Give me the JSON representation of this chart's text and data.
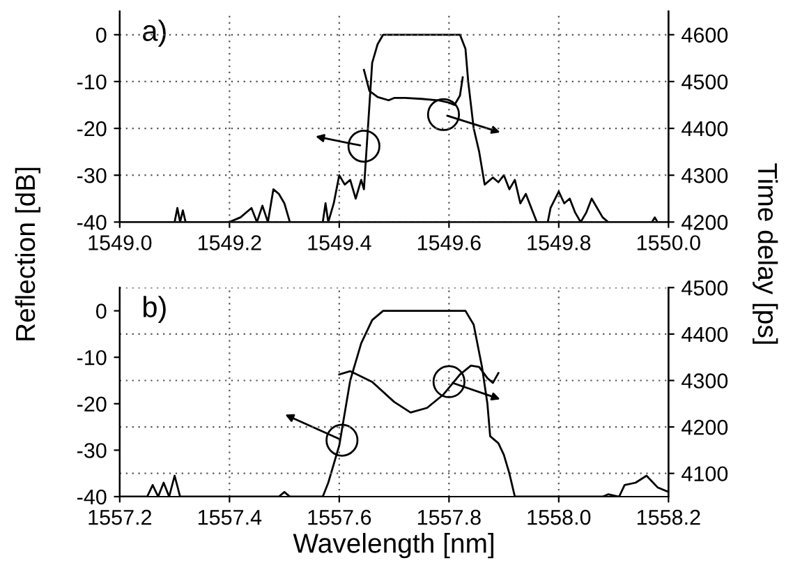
{
  "chart_data": [
    {
      "type": "line",
      "ylabel": "Reflection [dB]",
      "y2label": "Time delay [ps]",
      "annotations": [
        "a)"
      ],
      "xlim": [
        1549.0,
        1550.0
      ],
      "xticks": [
        {
          "value": 1549.0,
          "label": "1549.0"
        },
        {
          "value": 1549.2,
          "label": "1549.2"
        },
        {
          "value": 1549.4,
          "label": "1549.4"
        },
        {
          "value": 1549.6,
          "label": "1549.6"
        },
        {
          "value": 1549.8,
          "label": "1549.8"
        },
        {
          "value": 1550.0,
          "label": "1550.0"
        }
      ],
      "ylim": [
        -40,
        5
      ],
      "yticks": [
        -40,
        -30,
        -20,
        -10,
        0
      ],
      "y2lim": [
        4200,
        4650
      ],
      "y2ticks": [
        4200,
        4300,
        4400,
        4500,
        4600
      ],
      "grid": true,
      "line_style": "solid",
      "marker": "none",
      "series": [
        {
          "color": "#000000",
          "x": [
            1549.0,
            1549.1,
            1549.105,
            1549.11,
            1549.115,
            1549.12,
            1549.2,
            1549.22,
            1549.24,
            1549.25,
            1549.26,
            1549.27,
            1549.28,
            1549.29,
            1549.3,
            1549.31,
            1549.37,
            1549.375,
            1549.38,
            1549.39,
            1549.4,
            1549.41,
            1549.42,
            1549.43,
            1549.44,
            1549.445,
            1549.45,
            1549.46,
            1549.47,
            1549.48,
            1549.62,
            1549.63,
            1549.635,
            1549.645,
            1549.655,
            1549.665,
            1549.68,
            1549.69,
            1549.7,
            1549.71,
            1549.72,
            1549.73,
            1549.74,
            1549.76,
            1549.78,
            1549.785,
            1549.8,
            1549.81,
            1549.82,
            1549.83,
            1549.84,
            1549.85,
            1549.86,
            1549.87,
            1549.88,
            1549.89,
            1549.97,
            1549.975,
            1549.98,
            1550.0
          ],
          "values": [
            -40,
            -40,
            -37,
            -40,
            -37.5,
            -40,
            -40,
            -39,
            -37,
            -40,
            -36.5,
            -40,
            -33,
            -34,
            -36,
            -40,
            -40,
            -36,
            -40,
            -36,
            -30,
            -32,
            -31,
            -35,
            -31,
            -33,
            -24,
            -6,
            -2,
            0,
            0,
            -3,
            -10,
            -20,
            -25,
            -32,
            -30.5,
            -31.5,
            -30,
            -33,
            -31,
            -36,
            -34,
            -40,
            -40,
            -37,
            -33.5,
            -36,
            -35,
            -38,
            -40,
            -38,
            -35,
            -37,
            -39,
            -40,
            -40,
            -39,
            -40,
            -40
          ]
        },
        {
          "color": "#000000",
          "axis": "y2",
          "x": [
            1549.445,
            1549.455,
            1549.47,
            1549.49,
            1549.5,
            1549.52,
            1549.55,
            1549.58,
            1549.6,
            1549.61,
            1549.62,
            1549.625
          ],
          "values": [
            4525,
            4480,
            4467,
            4460,
            4465,
            4465,
            4463,
            4460,
            4455,
            4450,
            4470,
            4509
          ]
        }
      ]
    },
    {
      "type": "line",
      "xlabel": "Wavelength [nm]",
      "annotations": [
        "b)"
      ],
      "xlim": [
        1557.2,
        1558.2
      ],
      "xticks": [
        {
          "value": 1557.2,
          "label": "1557.2"
        },
        {
          "value": 1557.4,
          "label": "1557.4"
        },
        {
          "value": 1557.6,
          "label": "1557.6"
        },
        {
          "value": 1557.8,
          "label": "1557.8"
        },
        {
          "value": 1558.0,
          "label": "1558.0"
        },
        {
          "value": 1558.2,
          "label": "1558.2"
        }
      ],
      "ylim": [
        -40,
        5
      ],
      "yticks": [
        -40,
        -30,
        -20,
        -10,
        0
      ],
      "y2lim": [
        4050,
        4500
      ],
      "y2ticks": [
        4100,
        4200,
        4300,
        4400,
        4500
      ],
      "grid": true,
      "line_style": "solid",
      "marker": "none",
      "series": [
        {
          "color": "#000000",
          "x": [
            1557.2,
            1557.25,
            1557.26,
            1557.27,
            1557.28,
            1557.29,
            1557.3,
            1557.31,
            1557.49,
            1557.5,
            1557.51,
            1557.57,
            1557.58,
            1557.6,
            1557.62,
            1557.64,
            1557.66,
            1557.68,
            1557.83,
            1557.845,
            1557.86,
            1557.87,
            1557.875,
            1557.89,
            1557.9,
            1557.91,
            1557.92,
            1558.08,
            1558.09,
            1558.11,
            1558.12,
            1558.14,
            1558.16,
            1558.18,
            1558.2
          ],
          "values": [
            -40,
            -40,
            -37.5,
            -40,
            -37,
            -40,
            -35.5,
            -40,
            -40,
            -39,
            -40,
            -40,
            -37,
            -29,
            -15,
            -7,
            -2,
            0,
            0,
            -3,
            -12,
            -20,
            -27,
            -28.5,
            -31,
            -35,
            -40,
            -40,
            -39.5,
            -40,
            -37.5,
            -37,
            -35.5,
            -38,
            -39
          ]
        },
        {
          "color": "#000000",
          "axis": "y2",
          "x": [
            1557.6,
            1557.62,
            1557.66,
            1557.7,
            1557.73,
            1557.76,
            1557.79,
            1557.82,
            1557.84,
            1557.855,
            1557.87,
            1557.88,
            1557.89
          ],
          "values": [
            4313,
            4320,
            4297,
            4254,
            4231,
            4241,
            4270,
            4313,
            4332,
            4329,
            4305,
            4295,
            4316
          ]
        }
      ]
    }
  ]
}
